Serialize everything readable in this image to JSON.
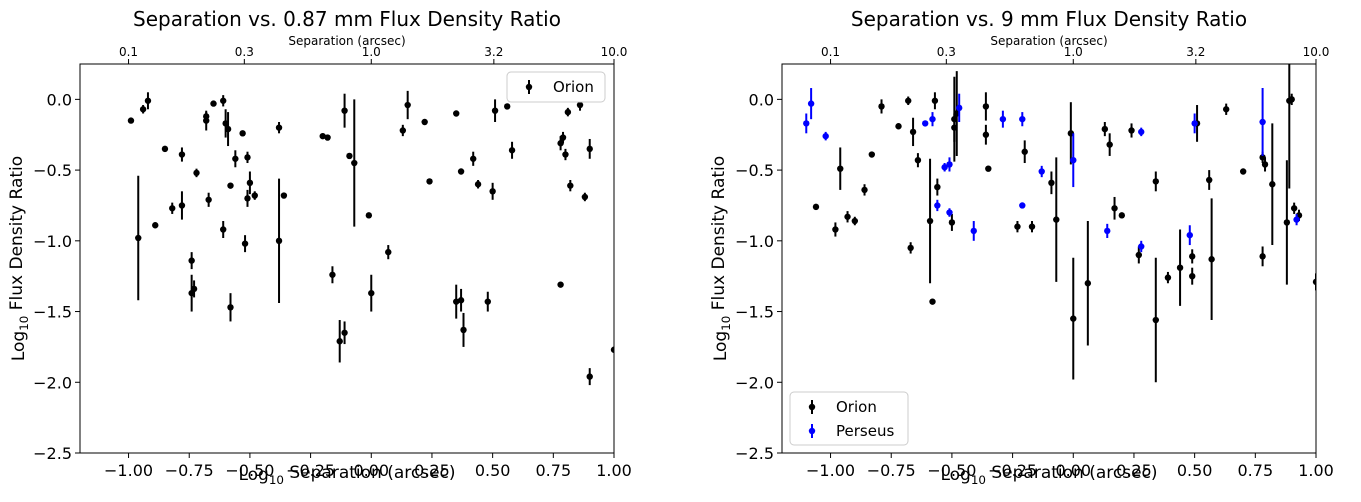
{
  "chart_data": [
    {
      "type": "scatter",
      "title": "Separation vs. 0.87 mm Flux Density Ratio",
      "xlabel": "Log₁₀ Separation (arcsec)",
      "ylabel": "Log₁₀ Flux Density Ratio",
      "top_xlabel": "Separation (arcsec)",
      "xlim": [
        -1.2,
        1.0
      ],
      "ylim": [
        -2.5,
        0.25
      ],
      "xticks": [
        -1.0,
        -0.75,
        -0.5,
        -0.25,
        0.0,
        0.25,
        0.5,
        0.75,
        1.0
      ],
      "xtick_labels": [
        "−1.00",
        "−0.75",
        "−0.50",
        "−0.25",
        "0.00",
        "0.25",
        "0.50",
        "0.75",
        "1.00"
      ],
      "yticks": [
        0.0,
        -0.5,
        -1.0,
        -1.5,
        -2.0,
        -2.5
      ],
      "ytick_labels": [
        "0.0",
        "−0.5",
        "−1.0",
        "−1.5",
        "−2.0",
        "−2.5"
      ],
      "top_xticks": [
        -1.0,
        -0.523,
        0.0,
        0.505,
        1.0
      ],
      "top_xtick_labels": [
        "0.1",
        "0.3",
        "1.0",
        "3.2",
        "10.0"
      ],
      "legend_position": "top-right",
      "series": [
        {
          "name": "Orion",
          "color": "#000000",
          "points": [
            [
              -0.99,
              -0.15,
              0.01
            ],
            [
              -0.96,
              -0.98,
              0.44
            ],
            [
              -0.94,
              -0.07,
              0.03
            ],
            [
              -0.92,
              -0.01,
              0.06
            ],
            [
              -0.89,
              -0.89,
              0.02
            ],
            [
              -0.85,
              -0.35,
              0.02
            ],
            [
              -0.82,
              -0.77,
              0.04
            ],
            [
              -0.78,
              -0.39,
              0.05
            ],
            [
              -0.78,
              -0.75,
              0.1
            ],
            [
              -0.74,
              -1.14,
              0.06
            ],
            [
              -0.74,
              -1.37,
              0.13
            ],
            [
              -0.73,
              -1.34,
              0.06
            ],
            [
              -0.72,
              -0.52,
              0.03
            ],
            [
              -0.68,
              -0.15,
              0.07
            ],
            [
              -0.68,
              -0.12,
              0.03
            ],
            [
              -0.67,
              -0.71,
              0.05
            ],
            [
              -0.65,
              -0.03,
              0.02
            ],
            [
              -0.61,
              -0.92,
              0.06
            ],
            [
              -0.61,
              -0.01,
              0.04
            ],
            [
              -0.6,
              -0.17,
              0.1
            ],
            [
              -0.59,
              -0.21,
              0.12
            ],
            [
              -0.58,
              -0.61,
              0.02
            ],
            [
              -0.58,
              -1.47,
              0.1
            ],
            [
              -0.56,
              -0.42,
              0.06
            ],
            [
              -0.53,
              -0.24,
              0.02
            ],
            [
              -0.52,
              -1.02,
              0.06
            ],
            [
              -0.51,
              -0.41,
              0.04
            ],
            [
              -0.51,
              -0.7,
              0.06
            ],
            [
              -0.5,
              -0.59,
              0.08
            ],
            [
              -0.48,
              -0.68,
              0.03
            ],
            [
              -0.38,
              -0.2,
              0.04
            ],
            [
              -0.38,
              -1.0,
              0.44
            ],
            [
              -0.36,
              -0.68,
              0.02
            ],
            [
              -0.2,
              -0.26,
              0.02
            ],
            [
              -0.18,
              -0.27,
              0.02
            ],
            [
              -0.16,
              -1.24,
              0.06
            ],
            [
              -0.13,
              -1.71,
              0.15
            ],
            [
              -0.11,
              -1.65,
              0.08
            ],
            [
              -0.11,
              -0.08,
              0.12
            ],
            [
              -0.09,
              -0.4,
              0.02
            ],
            [
              -0.07,
              -0.45,
              0.45
            ],
            [
              -0.01,
              -0.82,
              0.02
            ],
            [
              0.0,
              -1.37,
              0.13
            ],
            [
              0.07,
              -1.08,
              0.05
            ],
            [
              0.13,
              -0.22,
              0.04
            ],
            [
              0.15,
              -0.04,
              0.1
            ],
            [
              0.22,
              -0.16,
              0.02
            ],
            [
              0.24,
              -0.58,
              0.02
            ],
            [
              0.35,
              -0.1,
              0.02
            ],
            [
              0.35,
              -1.43,
              0.12
            ],
            [
              0.37,
              -1.42,
              0.08
            ],
            [
              0.37,
              -0.51,
              0.02
            ],
            [
              0.38,
              -1.63,
              0.12
            ],
            [
              0.42,
              -0.42,
              0.05
            ],
            [
              0.44,
              -0.6,
              0.03
            ],
            [
              0.48,
              -1.43,
              0.07
            ],
            [
              0.5,
              -0.65,
              0.06
            ],
            [
              0.51,
              -0.08,
              0.08
            ],
            [
              0.56,
              -0.05,
              0.02
            ],
            [
              0.58,
              -0.36,
              0.06
            ],
            [
              0.78,
              -0.31,
              0.05
            ],
            [
              0.78,
              -1.31,
              0.02
            ],
            [
              0.79,
              -0.27,
              0.04
            ],
            [
              0.8,
              -0.39,
              0.04
            ],
            [
              0.81,
              -0.09,
              0.03
            ],
            [
              0.82,
              -0.61,
              0.04
            ],
            [
              0.86,
              -0.04,
              0.04
            ],
            [
              0.88,
              -0.69,
              0.03
            ],
            [
              0.9,
              -1.96,
              0.06
            ],
            [
              0.9,
              -0.35,
              0.07
            ],
            [
              1.0,
              -1.77,
              0.02
            ]
          ]
        }
      ]
    },
    {
      "type": "scatter",
      "title": "Separation vs. 9 mm Flux Density Ratio",
      "xlabel": "Log₁₀ Separation (arcsec)",
      "ylabel": "Log₁₀ Flux Density Ratio",
      "top_xlabel": "Separation (arcsec)",
      "xlim": [
        -1.2,
        1.0
      ],
      "ylim": [
        -2.5,
        0.25
      ],
      "xticks": [
        -1.0,
        -0.75,
        -0.5,
        -0.25,
        0.0,
        0.25,
        0.5,
        0.75,
        1.0
      ],
      "xtick_labels": [
        "−1.00",
        "−0.75",
        "−0.50",
        "−0.25",
        "0.00",
        "0.25",
        "0.50",
        "0.75",
        "1.00"
      ],
      "yticks": [
        0.0,
        -0.5,
        -1.0,
        -1.5,
        -2.0,
        -2.5
      ],
      "ytick_labels": [
        "0.0",
        "−0.5",
        "−1.0",
        "−1.5",
        "−2.0",
        "−2.5"
      ],
      "top_xticks": [
        -1.0,
        -0.523,
        0.0,
        0.505,
        1.0
      ],
      "top_xtick_labels": [
        "0.1",
        "0.3",
        "1.0",
        "3.2",
        "10.0"
      ],
      "legend_position": "bottom-left",
      "series": [
        {
          "name": "Orion",
          "color": "#000000",
          "points": [
            [
              -1.06,
              -0.76,
              0.02
            ],
            [
              -0.98,
              -0.92,
              0.05
            ],
            [
              -0.96,
              -0.49,
              0.15
            ],
            [
              -0.93,
              -0.83,
              0.04
            ],
            [
              -0.9,
              -0.86,
              0.03
            ],
            [
              -0.86,
              -0.64,
              0.04
            ],
            [
              -0.83,
              -0.39,
              0.02
            ],
            [
              -0.79,
              -0.05,
              0.05
            ],
            [
              -0.72,
              -0.19,
              0.02
            ],
            [
              -0.68,
              -0.01,
              0.03
            ],
            [
              -0.67,
              -1.05,
              0.04
            ],
            [
              -0.66,
              -0.23,
              0.1
            ],
            [
              -0.64,
              -0.43,
              0.05
            ],
            [
              -0.59,
              -0.86,
              0.44
            ],
            [
              -0.58,
              -1.43,
              0.02
            ],
            [
              -0.57,
              -0.01,
              0.06
            ],
            [
              -0.56,
              -0.62,
              0.06
            ],
            [
              -0.5,
              -0.87,
              0.06
            ],
            [
              -0.49,
              -0.2,
              0.1
            ],
            [
              -0.49,
              -0.14,
              0.3
            ],
            [
              -0.48,
              -0.1,
              0.3
            ],
            [
              -0.36,
              -0.25,
              0.07
            ],
            [
              -0.36,
              -0.05,
              0.1
            ],
            [
              -0.35,
              -0.49,
              0.02
            ],
            [
              -0.23,
              -0.9,
              0.04
            ],
            [
              -0.2,
              -0.37,
              0.08
            ],
            [
              -0.17,
              -0.9,
              0.04
            ],
            [
              -0.09,
              -0.59,
              0.08
            ],
            [
              -0.07,
              -0.85,
              0.44
            ],
            [
              -0.01,
              -0.24,
              0.22
            ],
            [
              0.0,
              -1.55,
              0.43
            ],
            [
              0.06,
              -1.3,
              0.44
            ],
            [
              0.13,
              -0.21,
              0.05
            ],
            [
              0.15,
              -0.32,
              0.08
            ],
            [
              0.17,
              -0.77,
              0.08
            ],
            [
              0.2,
              -0.82,
              0.02
            ],
            [
              0.24,
              -0.22,
              0.05
            ],
            [
              0.27,
              -1.1,
              0.06
            ],
            [
              0.34,
              -0.58,
              0.07
            ],
            [
              0.34,
              -1.56,
              0.44
            ],
            [
              0.39,
              -1.26,
              0.04
            ],
            [
              0.44,
              -1.19,
              0.27
            ],
            [
              0.49,
              -1.11,
              0.05
            ],
            [
              0.49,
              -1.25,
              0.06
            ],
            [
              0.51,
              -0.17,
              0.13
            ],
            [
              0.56,
              -0.57,
              0.07
            ],
            [
              0.57,
              -1.13,
              0.43
            ],
            [
              0.63,
              -0.07,
              0.04
            ],
            [
              0.7,
              -0.51,
              0.02
            ],
            [
              0.78,
              -1.11,
              0.07
            ],
            [
              0.78,
              -0.41,
              0.04
            ],
            [
              0.79,
              -0.46,
              0.05
            ],
            [
              0.82,
              -0.6,
              0.43
            ],
            [
              0.88,
              -0.87,
              0.44
            ],
            [
              0.89,
              -0.01,
              0.62
            ],
            [
              0.9,
              0.0,
              0.04
            ],
            [
              0.91,
              -0.77,
              0.04
            ],
            [
              0.93,
              -0.82,
              0.04
            ],
            [
              1.0,
              -1.29,
              0.06
            ]
          ]
        },
        {
          "name": "Perseus",
          "color": "#0000ff",
          "points": [
            [
              -1.1,
              -0.17,
              0.07
            ],
            [
              -1.08,
              -0.03,
              0.11
            ],
            [
              -1.02,
              -0.26,
              0.03
            ],
            [
              -0.61,
              -0.17,
              0.02
            ],
            [
              -0.58,
              -0.14,
              0.05
            ],
            [
              -0.56,
              -0.75,
              0.04
            ],
            [
              -0.53,
              -0.48,
              0.03
            ],
            [
              -0.51,
              -0.8,
              0.03
            ],
            [
              -0.51,
              -0.46,
              0.05
            ],
            [
              -0.47,
              -0.06,
              0.1
            ],
            [
              -0.41,
              -0.93,
              0.07
            ],
            [
              -0.29,
              -0.14,
              0.06
            ],
            [
              -0.21,
              -0.14,
              0.05
            ],
            [
              -0.21,
              -0.75,
              0.02
            ],
            [
              -0.13,
              -0.51,
              0.04
            ],
            [
              0.0,
              -0.43,
              0.19
            ],
            [
              0.14,
              -0.93,
              0.05
            ],
            [
              0.28,
              -1.04,
              0.04
            ],
            [
              0.28,
              -0.23,
              0.03
            ],
            [
              0.48,
              -0.96,
              0.07
            ],
            [
              0.5,
              -0.17,
              0.07
            ],
            [
              0.78,
              -0.16,
              0.24
            ],
            [
              0.92,
              -0.85,
              0.04
            ]
          ]
        }
      ]
    }
  ]
}
